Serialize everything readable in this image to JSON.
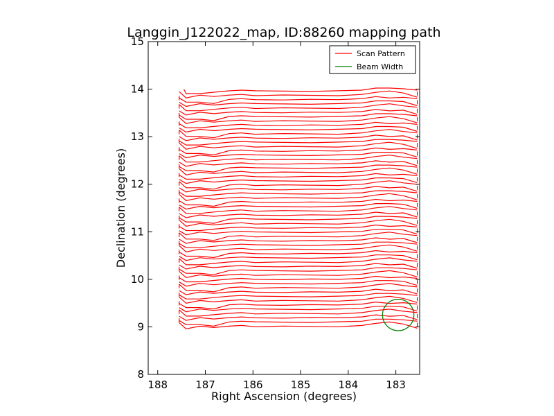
{
  "chart_data": {
    "type": "line",
    "title": "Langgin_J122022_map, ID:88260 mapping path",
    "xlabel": "Right Ascension (degrees)",
    "ylabel": "Declination (degrees)",
    "xlim": [
      188.2,
      182.5
    ],
    "ylim": [
      8,
      15
    ],
    "x_inverted": true,
    "xticks": [
      "188",
      "187",
      "186",
      "185",
      "184",
      "183"
    ],
    "yticks": [
      "8",
      "9",
      "10",
      "11",
      "12",
      "13",
      "14",
      "15"
    ],
    "grid": false,
    "legend_placement": "top-right",
    "legend": [
      {
        "label": "Scan Pattern",
        "color": "#ff0000"
      },
      {
        "label": "Beam Width",
        "color": "#008000"
      }
    ],
    "series": [
      {
        "name": "Scan Pattern",
        "color": "#ff0000",
        "pattern": "raster",
        "ra_range": [
          187.55,
          182.55
        ],
        "dec_start": 9.0,
        "dec_end": 13.95,
        "dec_step": 0.09
      },
      {
        "name": "Beam Width",
        "color": "#008000",
        "shape": "circle",
        "center_ra": 182.95,
        "center_dec": 9.25,
        "radius_deg": 0.33
      }
    ]
  }
}
